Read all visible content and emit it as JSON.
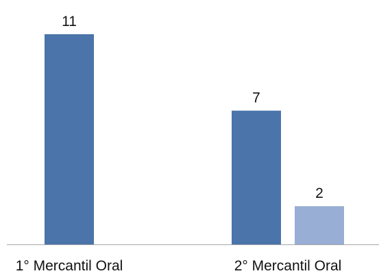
{
  "chart_data": {
    "type": "bar",
    "categories": [
      "1° Mercantil Oral",
      "2° Mercantil Oral"
    ],
    "series": [
      {
        "values": [
          11,
          7
        ],
        "color": "#4A74AA"
      },
      {
        "values": [
          null,
          2
        ],
        "color": "#98AED4"
      }
    ],
    "title": "",
    "xlabel": "",
    "ylabel": "",
    "ylim": [
      0,
      11
    ],
    "grid": false,
    "data_labels": true,
    "axis_color": "#A6A6A6"
  }
}
